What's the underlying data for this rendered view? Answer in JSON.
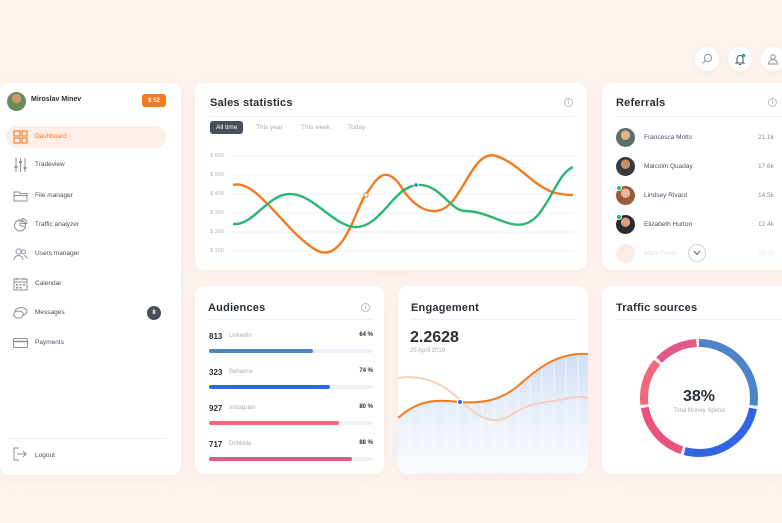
{
  "colors": {
    "accent": "#f47a20",
    "green": "#2bb673",
    "blue": "#3c6fe0",
    "pink": "#e9547e",
    "background": "#fdf4f0"
  },
  "topbar": {
    "icons": [
      "search-icon",
      "bell-icon",
      "user-icon"
    ]
  },
  "profile": {
    "name": "Miroslav Minev",
    "badge": "$ 52"
  },
  "sidebar": {
    "items": [
      {
        "label": "Dashboard",
        "icon": "dashboard-icon"
      },
      {
        "label": "Tradeview",
        "icon": "sliders-icon"
      },
      {
        "label": "File manager",
        "icon": "folder-icon"
      },
      {
        "label": "Traffic analyzer",
        "icon": "pie-chart-icon"
      },
      {
        "label": "Users manager",
        "icon": "users-icon"
      },
      {
        "label": "Calendar",
        "icon": "calendar-icon"
      },
      {
        "label": "Messages",
        "icon": "chat-icon",
        "count": "8"
      },
      {
        "label": "Payments",
        "icon": "credit-card-icon"
      }
    ],
    "logout": "Logout"
  },
  "sales": {
    "title": "Sales statistics",
    "tabs": [
      "All time",
      "This year",
      "This week",
      "Today"
    ],
    "y_ticks": [
      "$ 600",
      "$ 500",
      "$ 400",
      "$ 300",
      "$ 200",
      "$ 100"
    ]
  },
  "referrals": {
    "title": "Referrals",
    "rows": [
      {
        "name": "Francesca Motts",
        "value": "21.1k"
      },
      {
        "name": "Malcolm Quaday",
        "value": "17.6k"
      },
      {
        "name": "Lindsey Rivard",
        "value": "14.5k"
      },
      {
        "name": "Elizabeth Hurton",
        "value": "12.4k"
      },
      {
        "name": "Mark Fetch",
        "value": "10.1k"
      }
    ]
  },
  "audiences": {
    "title": "Audiences",
    "rows": [
      {
        "num": "813",
        "name": "LinkedIn",
        "pct": "64 %",
        "value": 0.64,
        "color": "#4d84c8"
      },
      {
        "num": "323",
        "name": "Behance",
        "pct": "74 %",
        "value": 0.74,
        "color": "#3065e3"
      },
      {
        "num": "927",
        "name": "Instagram",
        "pct": "80 %",
        "value": 0.8,
        "color": "#f0697c"
      },
      {
        "num": "717",
        "name": "Dribbble",
        "pct": "88 %",
        "value": 0.88,
        "color": "#e4578a"
      }
    ]
  },
  "engagement": {
    "title": "Engagement",
    "value": "2.2628",
    "date": "25 April 2019"
  },
  "traffic": {
    "title": "Traffic sources",
    "percent": "38%",
    "label": "Total Money Spend",
    "segments": [
      {
        "value": 0.28,
        "color": "#4d84c8"
      },
      {
        "value": 0.27,
        "color": "#3065e3"
      },
      {
        "value": 0.18,
        "color": "#e9547e"
      },
      {
        "value": 0.14,
        "color": "#f0697c"
      },
      {
        "value": 0.13,
        "color": "#e4578a"
      }
    ]
  }
}
